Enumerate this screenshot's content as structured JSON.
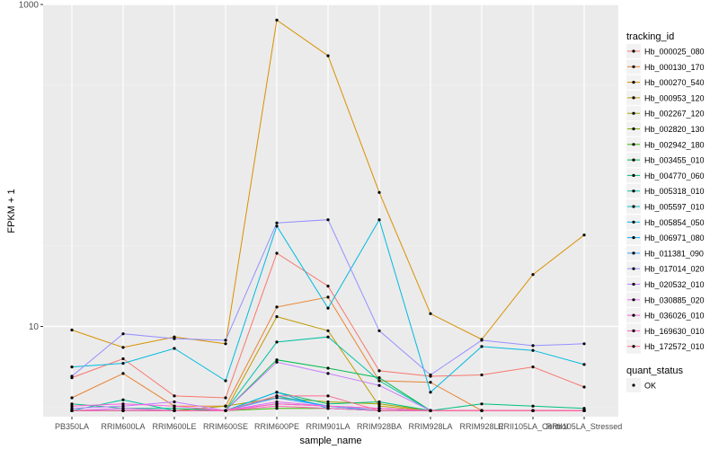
{
  "chart_data": {
    "type": "line",
    "xlabel": "sample_name",
    "ylabel": "FPKM + 1",
    "y_scale": "log10",
    "ylim": [
      2.75,
      1000
    ],
    "y_ticks": [
      {
        "value": 10,
        "label": "10"
      },
      {
        "value": 1000,
        "label": "1000"
      }
    ],
    "categories": [
      "PB350LA",
      "RRIM600LA",
      "RRIM600LE",
      "RRIM600SE",
      "RRIM600PE",
      "RRIM901LA",
      "RRIM928BA",
      "RRIM928LA",
      "RRIM928LE",
      "RRII105LA_Control",
      "RRII105LA_Stressed"
    ],
    "legend_title": "tracking_id",
    "series": [
      {
        "name": "Hb_000025_080",
        "color": "#F8766D",
        "values": [
          4.8,
          6.3,
          3.7,
          3.6,
          28.5,
          17.8,
          5.3,
          4.9,
          5.0,
          5.6,
          4.2
        ]
      },
      {
        "name": "Hb_000130_170",
        "color": "#EA8331",
        "values": [
          3.6,
          5.1,
          3.2,
          3.2,
          13.2,
          15.2,
          4.6,
          4.5,
          3.0,
          3.0,
          3.0
        ]
      },
      {
        "name": "Hb_000270_540",
        "color": "#D89000",
        "values": [
          9.5,
          7.4,
          8.6,
          7.8,
          800,
          480,
          68,
          12.0,
          8.3,
          21,
          37
        ]
      },
      {
        "name": "Hb_000953_120",
        "color": "#C09B00",
        "values": [
          3.0,
          3.0,
          3.0,
          3.0,
          11.5,
          9.4,
          3.2,
          3.0,
          3.0,
          3.0,
          3.0
        ]
      },
      {
        "name": "Hb_002267_120",
        "color": "#A3A500",
        "values": [
          3.0,
          3.0,
          3.0,
          3.2,
          3.6,
          3.4,
          3.3,
          3.0,
          3.0,
          3.0,
          3.0
        ]
      },
      {
        "name": "Hb_002820_130",
        "color": "#7CAE00",
        "values": [
          3.0,
          3.0,
          3.0,
          3.0,
          3.3,
          3.2,
          3.1,
          3.0,
          3.0,
          3.0,
          3.0
        ]
      },
      {
        "name": "Hb_002942_180",
        "color": "#39B600",
        "values": [
          3.0,
          3.0,
          3.0,
          3.0,
          3.1,
          3.1,
          3.0,
          3.0,
          3.0,
          3.0,
          3.0
        ]
      },
      {
        "name": "Hb_003455_010",
        "color": "#00BB4E",
        "values": [
          3.0,
          3.0,
          3.0,
          3.0,
          6.2,
          5.5,
          4.8,
          3.0,
          3.0,
          3.0,
          3.0
        ]
      },
      {
        "name": "Hb_004770_060",
        "color": "#00BF7D",
        "values": [
          3.3,
          3.1,
          3.1,
          3.0,
          3.9,
          3.3,
          3.4,
          3.0,
          3.3,
          3.2,
          3.1
        ]
      },
      {
        "name": "Hb_005318_010",
        "color": "#00C1A3",
        "values": [
          3.0,
          3.5,
          3.0,
          3.0,
          8.0,
          8.6,
          4.6,
          3.0,
          3.0,
          3.0,
          3.0
        ]
      },
      {
        "name": "Hb_005597_010",
        "color": "#00BFC4",
        "values": [
          3.0,
          3.0,
          3.0,
          3.0,
          3.7,
          3.2,
          3.0,
          3.0,
          3.0,
          3.0,
          3.0
        ]
      },
      {
        "name": "Hb_005854_050",
        "color": "#00BAE0",
        "values": [
          5.6,
          5.9,
          7.3,
          4.6,
          42,
          13.0,
          46,
          3.9,
          7.5,
          7.1,
          5.8
        ]
      },
      {
        "name": "Hb_006971_080",
        "color": "#00B0F6",
        "values": [
          3.0,
          3.0,
          3.0,
          3.0,
          3.9,
          3.1,
          3.0,
          3.0,
          3.0,
          3.0,
          3.0
        ]
      },
      {
        "name": "Hb_011381_090",
        "color": "#35A2FF",
        "values": [
          3.0,
          3.0,
          3.0,
          3.0,
          3.6,
          3.2,
          3.0,
          3.0,
          3.0,
          3.0,
          3.0
        ]
      },
      {
        "name": "Hb_017014_020",
        "color": "#9590FF",
        "values": [
          4.9,
          9.0,
          8.4,
          8.2,
          44,
          46,
          9.4,
          5.0,
          8.2,
          7.6,
          7.8
        ]
      },
      {
        "name": "Hb_020532_010",
        "color": "#C77CFF",
        "values": [
          3.1,
          3.2,
          3.4,
          3.0,
          6.0,
          5.1,
          4.3,
          3.0,
          3.0,
          3.0,
          3.0
        ]
      },
      {
        "name": "Hb_030885_020",
        "color": "#E76BF3",
        "values": [
          3.0,
          3.1,
          3.0,
          3.0,
          3.4,
          3.2,
          3.1,
          3.0,
          3.0,
          3.0,
          3.0
        ]
      },
      {
        "name": "Hb_036026_010",
        "color": "#FA62DB",
        "values": [
          3.2,
          3.3,
          3.2,
          3.0,
          3.3,
          3.2,
          3.1,
          3.0,
          3.0,
          3.0,
          3.0
        ]
      },
      {
        "name": "Hb_169630_010",
        "color": "#FF62BC",
        "values": [
          3.0,
          3.0,
          3.0,
          3.0,
          3.2,
          3.1,
          3.0,
          3.0,
          3.0,
          3.0,
          3.0
        ]
      },
      {
        "name": "Hb_172572_010",
        "color": "#FF6C91",
        "values": [
          3.0,
          3.0,
          3.0,
          3.0,
          3.7,
          3.7,
          3.0,
          3.0,
          3.0,
          3.0,
          3.0
        ]
      }
    ],
    "legend2_title": "quant_status",
    "legend2_items": [
      {
        "label": "OK"
      }
    ],
    "grid": true,
    "legend_position": "right",
    "colors": {
      "panel_bg": "#EBEBEB",
      "grid_major": "#FFFFFF",
      "grid_minor": "#F4F4F4",
      "point": "#000000",
      "text": "#000000",
      "tick_text": "#4D4D4D"
    }
  }
}
